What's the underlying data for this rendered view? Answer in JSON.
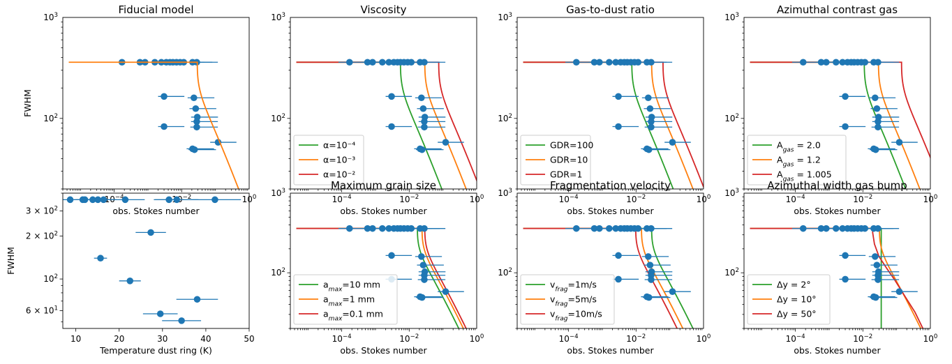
{
  "figure": {
    "colors": {
      "data": "#1f77b4",
      "green": "#2ca02c",
      "orange": "#ff7f0e",
      "red": "#d62728",
      "legend_edge": "#cccccc"
    }
  },
  "chart_data": [
    {
      "type": "scatter",
      "title": "Fiducial model",
      "xlabel": "obs. Stokes number",
      "ylabel": "FWHM",
      "xscale": "log",
      "yscale": "log",
      "xlim": [
        3e-06,
        1
      ],
      "ylim": [
        20,
        1000
      ],
      "xticks": [
        "10^-4",
        "10^-2",
        "10^0"
      ],
      "yticks": [
        "10^2",
        "10^3"
      ],
      "points": [
        {
          "x": 0.00017,
          "y": 360,
          "xerr": [
            9e-05,
            0.0009
          ]
        },
        {
          "x": 0.00058,
          "y": 360,
          "xerr": [
            0.00018,
            0.0016
          ]
        },
        {
          "x": 0.00082,
          "y": 360,
          "xerr": [
            0.0003,
            0.0025
          ]
        },
        {
          "x": 0.0016,
          "y": 360,
          "xerr": [
            0.0005,
            0.005
          ]
        },
        {
          "x": 0.0025,
          "y": 360,
          "xerr": [
            0.0008,
            0.007
          ]
        },
        {
          "x": 0.0035,
          "y": 360,
          "xerr": [
            0.0011,
            0.01
          ]
        },
        {
          "x": 0.0045,
          "y": 360,
          "xerr": [
            0.0014,
            0.014
          ]
        },
        {
          "x": 0.0055,
          "y": 360,
          "xerr": [
            0.0017,
            0.017
          ]
        },
        {
          "x": 0.007,
          "y": 360,
          "xerr": [
            0.0022,
            0.022
          ]
        },
        {
          "x": 0.009,
          "y": 360,
          "xerr": [
            0.003,
            0.028
          ]
        },
        {
          "x": 0.0115,
          "y": 360,
          "xerr": [
            0.0038,
            0.036
          ]
        },
        {
          "x": 0.021,
          "y": 360,
          "xerr": [
            0.007,
            0.06
          ]
        },
        {
          "x": 0.028,
          "y": 360,
          "xerr": [
            0.009,
            0.09
          ]
        },
        {
          "x": 0.003,
          "y": 165,
          "xerr": [
            0.001,
            0.009
          ]
        },
        {
          "x": 0.023,
          "y": 160,
          "xerr": [
            0.008,
            0.07
          ]
        },
        {
          "x": 0.026,
          "y": 125,
          "xerr": [
            0.009,
            0.08
          ]
        },
        {
          "x": 0.029,
          "y": 103,
          "xerr": [
            0.01,
            0.09
          ]
        },
        {
          "x": 0.028,
          "y": 93,
          "xerr": [
            0.009,
            0.09
          ]
        },
        {
          "x": 0.003,
          "y": 83,
          "xerr": [
            0.001,
            0.009
          ]
        },
        {
          "x": 0.028,
          "y": 82,
          "xerr": [
            0.01,
            0.09
          ]
        },
        {
          "x": 0.12,
          "y": 58,
          "xerr": [
            0.05,
            0.3
          ]
        },
        {
          "x": 0.021,
          "y": 50,
          "xerr": [
            0.007,
            0.07
          ]
        },
        {
          "x": 0.024,
          "y": 49,
          "xerr": [
            0.008,
            0.08
          ]
        }
      ],
      "series": [
        {
          "color": "orange",
          "x0": 4.5e-06,
          "xc": 0.029,
          "y1": 360,
          "k": 0.9
        }
      ]
    },
    {
      "type": "line",
      "title": "Viscosity",
      "xlabel": "obs. Stokes number",
      "ylabel": "",
      "xscale": "log",
      "yscale": "log",
      "xlim": [
        3e-06,
        1
      ],
      "ylim": [
        20,
        1000
      ],
      "xticks": [
        "10^-4",
        "10^-2",
        "10^0"
      ],
      "yticks": [
        "10^2",
        "10^3"
      ],
      "legend": {
        "placement": "lower-left",
        "entries": [
          "α=10⁻⁴",
          "α=10⁻³",
          "α=10⁻²"
        ]
      },
      "series": [
        {
          "name": "α=10⁻⁴",
          "color": "green",
          "x0": 4.5e-06,
          "xc": 0.0055,
          "y1": 360,
          "k": 0.9
        },
        {
          "name": "α=10⁻³",
          "color": "orange",
          "x0": 4.5e-06,
          "xc": 0.029,
          "y1": 360,
          "k": 0.9
        },
        {
          "name": "α=10⁻²",
          "color": "red",
          "x0": 4.5e-06,
          "xc": 0.075,
          "y1": 360,
          "k": 0.9
        }
      ]
    },
    {
      "type": "line",
      "title": "Gas-to-dust ratio",
      "xlabel": "obs. Stokes number",
      "ylabel": "",
      "xscale": "log",
      "yscale": "log",
      "xlim": [
        3e-06,
        1
      ],
      "ylim": [
        20,
        1000
      ],
      "xticks": [
        "10^-4",
        "10^-2",
        "10^0"
      ],
      "yticks": [
        "10^2",
        "10^3"
      ],
      "legend": {
        "placement": "lower-left",
        "entries": [
          "GDR=100",
          "GDR=10",
          "GDR=1"
        ]
      },
      "series": [
        {
          "name": "GDR=100",
          "color": "green",
          "x0": 4.5e-06,
          "xc": 0.0075,
          "y1": 360,
          "k": 0.9
        },
        {
          "name": "GDR=10",
          "color": "orange",
          "x0": 4.5e-06,
          "xc": 0.029,
          "y1": 360,
          "k": 0.9
        },
        {
          "name": "GDR=1",
          "color": "red",
          "x0": 4.5e-06,
          "xc": 0.063,
          "y1": 360,
          "k": 0.9
        }
      ]
    },
    {
      "type": "line",
      "title": "Azimuthal contrast gas",
      "xlabel": "obs. Stokes number",
      "ylabel": "",
      "xscale": "log",
      "yscale": "log",
      "xlim": [
        3e-06,
        1
      ],
      "ylim": [
        20,
        1000
      ],
      "xticks": [
        "10^-4",
        "10^-2",
        "10^0"
      ],
      "yticks": [
        "10^2",
        "10^3"
      ],
      "legend": {
        "placement": "lower-left",
        "entries": [
          "A_gas = 2.0",
          "A_gas = 1.2",
          "A_gas = 1.005"
        ]
      },
      "series": [
        {
          "name": "A_gas = 2.0",
          "color": "green",
          "x0": 4.5e-06,
          "xc": 0.011,
          "y1": 360,
          "k": 0.9
        },
        {
          "name": "A_gas = 1.2",
          "color": "orange",
          "x0": 4.5e-06,
          "xc": 0.029,
          "y1": 360,
          "k": 0.9
        },
        {
          "name": "A_gas = 1.005",
          "color": "red",
          "x0": 4.5e-06,
          "xc": 0.14,
          "y1": 360,
          "k": 0.9
        }
      ]
    },
    {
      "type": "scatter",
      "title": "",
      "xlabel": "Temperature dust ring (K)",
      "ylabel": "FWHM",
      "xscale": "linear",
      "yscale": "log",
      "xlim": [
        7,
        50
      ],
      "ylim": [
        45,
        400
      ],
      "xticks": [
        "10",
        "20",
        "30",
        "40",
        "50"
      ],
      "yticks": [
        "6 × 10^1",
        "10^2",
        "2 × 10^2",
        "3 × 10^2"
      ],
      "points": [
        {
          "x": 8.7,
          "y": 360,
          "xerr": [
            2.0,
            2.0
          ]
        },
        {
          "x": 11.6,
          "y": 360,
          "xerr": [
            2.0,
            2.0
          ]
        },
        {
          "x": 12.1,
          "y": 360,
          "xerr": [
            2.0,
            2.0
          ]
        },
        {
          "x": 13.9,
          "y": 360,
          "xerr": [
            2.5,
            2.5
          ]
        },
        {
          "x": 15.1,
          "y": 360,
          "xerr": [
            2.5,
            2.5
          ]
        },
        {
          "x": 16.4,
          "y": 360,
          "xerr": [
            3.0,
            3.0
          ]
        },
        {
          "x": 21.4,
          "y": 360,
          "xerr": [
            4.5,
            4.5
          ]
        },
        {
          "x": 31.5,
          "y": 360,
          "xerr": [
            3.5,
            3.5
          ]
        },
        {
          "x": 33.3,
          "y": 360,
          "xerr": [
            5.0,
            5.0
          ]
        },
        {
          "x": 42.1,
          "y": 360,
          "xerr": [
            6.0,
            6.0
          ]
        },
        {
          "x": 27.3,
          "y": 212,
          "xerr": [
            3.5,
            3.5
          ]
        },
        {
          "x": 15.7,
          "y": 140,
          "xerr": [
            1.5,
            1.5
          ]
        },
        {
          "x": 22.5,
          "y": 97,
          "xerr": [
            2.5,
            2.5
          ]
        },
        {
          "x": 38.0,
          "y": 72,
          "xerr": [
            4.8,
            4.8
          ]
        },
        {
          "x": 29.5,
          "y": 57,
          "xerr": [
            4.0,
            4.0
          ]
        },
        {
          "x": 34.4,
          "y": 51,
          "xerr": [
            4.5,
            4.5
          ]
        }
      ]
    },
    {
      "type": "line",
      "title": "Maximum grain size",
      "xlabel": "obs. Stokes number",
      "ylabel": "",
      "xscale": "log",
      "yscale": "log",
      "xlim": [
        3e-06,
        1
      ],
      "ylim": [
        20,
        1000
      ],
      "xticks": [
        "10^-4",
        "10^-2",
        "10^0"
      ],
      "yticks": [
        "10^2",
        "10^3"
      ],
      "legend": {
        "placement": "lower-left",
        "entries": [
          "a_max=10 mm",
          "a_max=1 mm",
          "a_max=0.1 mm"
        ]
      },
      "series": [
        {
          "name": "a_max=10 mm",
          "color": "green",
          "x0": 4.5e-06,
          "xc": 0.0175,
          "y1": 360,
          "k": 0.9
        },
        {
          "name": "a_max=1 mm",
          "color": "orange",
          "x0": 4.5e-06,
          "xc": 0.024,
          "y1": 360,
          "k": 0.9
        },
        {
          "name": "a_max=0.1 mm",
          "color": "red",
          "x0": 4.5e-06,
          "xc": 0.029,
          "y1": 360,
          "k": 0.9
        }
      ]
    },
    {
      "type": "line",
      "title": "Fragmentation velocity",
      "xlabel": "obs. Stokes number",
      "ylabel": "",
      "xscale": "log",
      "yscale": "log",
      "xlim": [
        3e-06,
        1
      ],
      "ylim": [
        20,
        1000
      ],
      "xticks": [
        "10^-4",
        "10^-2",
        "10^0"
      ],
      "yticks": [
        "10^2",
        "10^3"
      ],
      "legend": {
        "placement": "lower-left",
        "entries": [
          "v_frag=1m/s",
          "v_frag=5m/s",
          "v_frag=10m/s"
        ]
      },
      "series": [
        {
          "name": "v_frag=1m/s",
          "color": "green",
          "x0": 4.5e-06,
          "xc": 0.029,
          "y1": 360,
          "k": 0.9
        },
        {
          "name": "v_frag=5m/s",
          "color": "orange",
          "x0": 4.5e-06,
          "xc": 0.0145,
          "y1": 360,
          "k": 0.9
        },
        {
          "name": "v_frag=10m/s",
          "color": "red",
          "x0": 4.5e-06,
          "xc": 0.0098,
          "y1": 360,
          "k": 0.9
        }
      ]
    },
    {
      "type": "line",
      "title": "Azimuthal width gas bump",
      "xlabel": "obs. Stokes number",
      "ylabel": "",
      "xscale": "log",
      "yscale": "log",
      "xlim": [
        3e-06,
        1
      ],
      "ylim": [
        20,
        1000
      ],
      "xticks": [
        "10^-4",
        "10^-2",
        "10^0"
      ],
      "yticks": [
        "10^2",
        "10^3"
      ],
      "legend": {
        "placement": "lower-left",
        "entries": [
          "Δy = 2°",
          "Δy = 10°",
          "Δy = 50°"
        ]
      },
      "series": [
        {
          "name": "Δy = 2°",
          "color": "green",
          "x0": 4.5e-06,
          "xc": 0.035,
          "y1": 360,
          "k": 0.0
        },
        {
          "name": "Δy = 10°",
          "color": "orange",
          "x0": 4.5e-06,
          "xc": 0.031,
          "y1": 360,
          "k": 0.9
        },
        {
          "name": "Δy = 50°",
          "color": "red",
          "x0": 4.5e-06,
          "xc": 0.0,
          "pts": [
            [
              4.5e-06,
              360
            ],
            [
              0.0195,
              360
            ],
            [
              0.0195,
              320
            ],
            [
              0.022,
              230
            ],
            [
              0.03,
              160
            ],
            [
              0.05,
              115
            ],
            [
              0.09,
              80
            ],
            [
              0.18,
              50
            ],
            [
              0.35,
              32
            ],
            [
              0.6,
              20
            ]
          ]
        }
      ]
    }
  ]
}
